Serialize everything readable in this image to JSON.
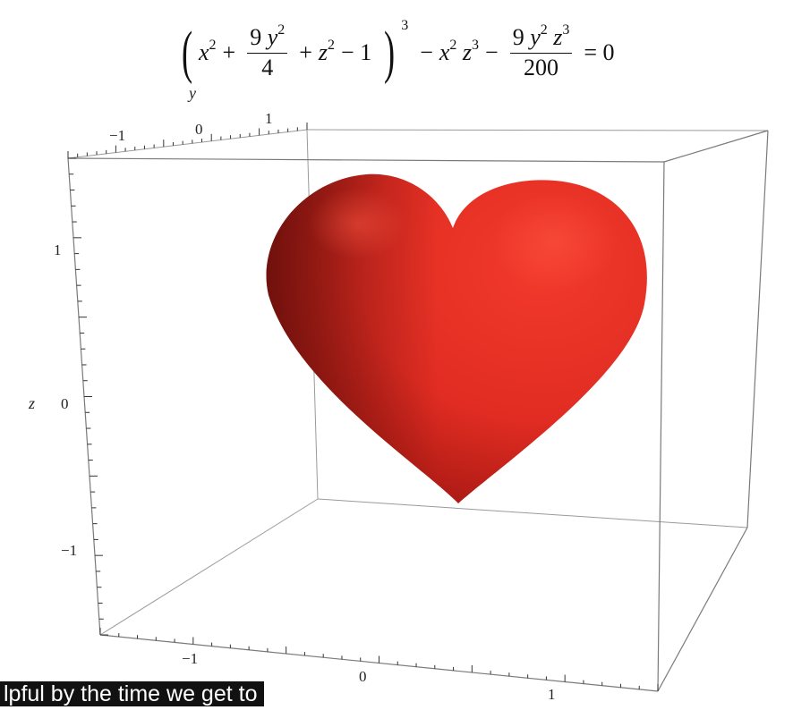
{
  "equation": {
    "x2": "x",
    "plus": "+",
    "frac1_num": "9",
    "frac1_den": "4",
    "z2": "z",
    "minus_one": "− 1",
    "exp2": "2",
    "exp3": "3",
    "minus": "−",
    "frac2_num": "9",
    "frac2_den": "200",
    "equals_zero": "= 0",
    "y": "y"
  },
  "axes": {
    "y_label": "y",
    "z_label": "z",
    "y_ticks": [
      "−1",
      "0",
      "1"
    ],
    "z_ticks": [
      "1",
      "0",
      "−1"
    ],
    "x_ticks": [
      "−1",
      "0",
      "1"
    ]
  },
  "colors": {
    "heart_light": "#ee3327",
    "heart_mid": "#c81f19",
    "heart_dark": "#4d0a07",
    "box_line": "#8a8a8a",
    "caption_bg": "#111111"
  },
  "caption": {
    "text": "lpful by the time we get to"
  },
  "icons": {
    "heart": "heart-surface-icon"
  }
}
